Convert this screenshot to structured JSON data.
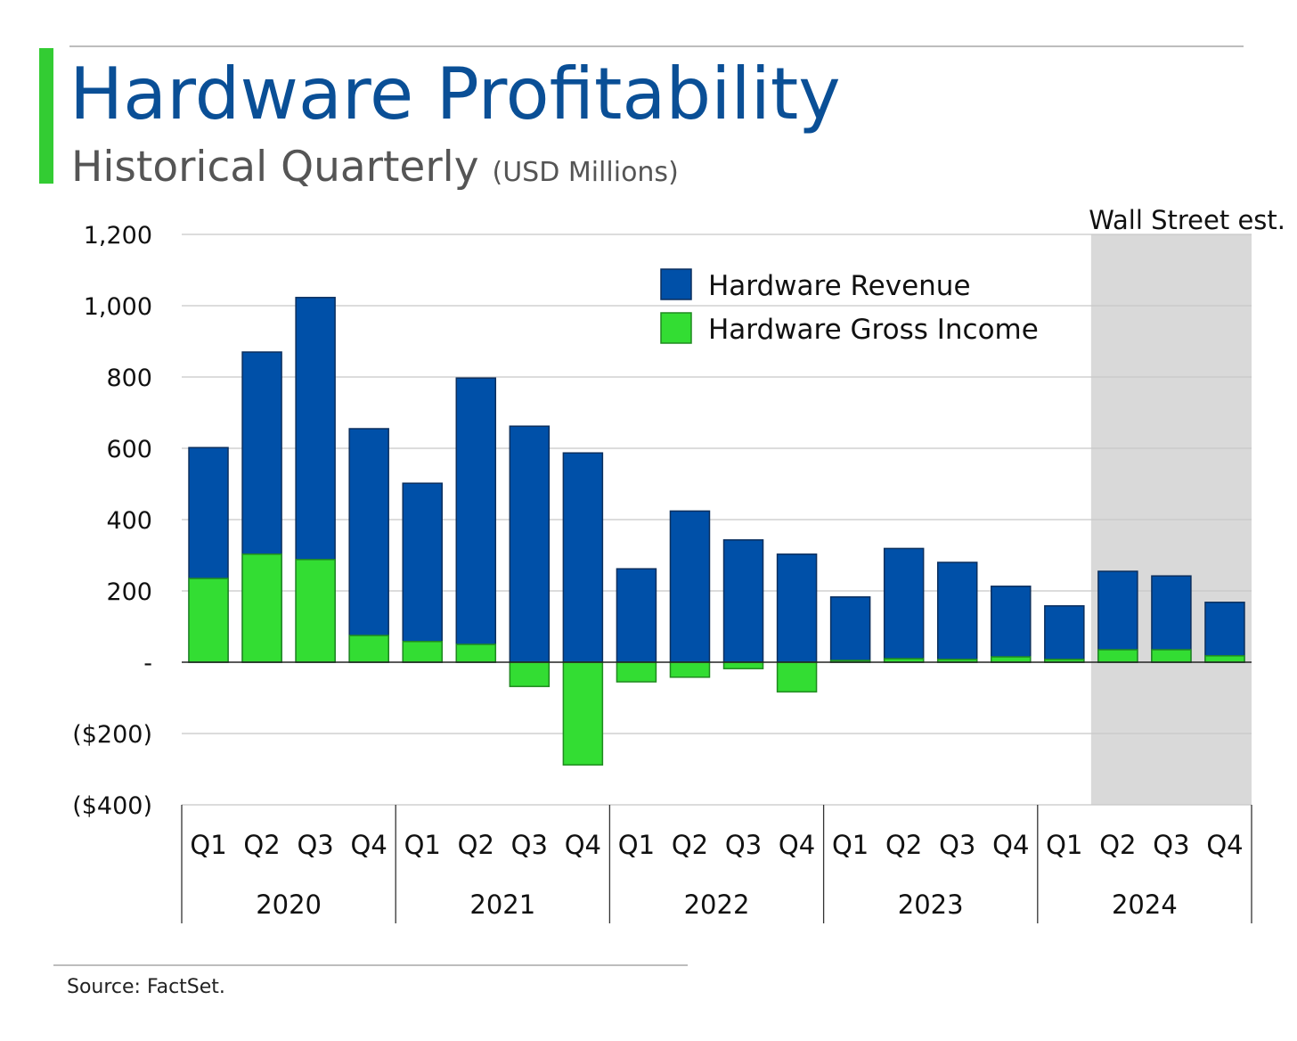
{
  "title": "Hardware Profitability",
  "subtitle": "Historical Quarterly",
  "units": "(USD Millions)",
  "source": "Source: FactSet.",
  "colors": {
    "title": "#0a4f96",
    "accent": "#33cc33",
    "revenue": "#0050a8",
    "gross_income": "#33dd33",
    "estimate_shade": "#d9d9d9"
  },
  "chart_data": {
    "type": "bar",
    "title": "Hardware Profitability",
    "subtitle": "Historical Quarterly (USD Millions)",
    "categories": [
      "Q1",
      "Q2",
      "Q3",
      "Q4",
      "Q1",
      "Q2",
      "Q3",
      "Q4",
      "Q1",
      "Q2",
      "Q3",
      "Q4",
      "Q1",
      "Q2",
      "Q3",
      "Q4",
      "Q1",
      "Q2",
      "Q3",
      "Q4"
    ],
    "groups": [
      {
        "label": "2020",
        "count": 4
      },
      {
        "label": "2021",
        "count": 4
      },
      {
        "label": "2022",
        "count": 4
      },
      {
        "label": "2023",
        "count": 4
      },
      {
        "label": "2024",
        "count": 4
      }
    ],
    "series": [
      {
        "name": "Hardware Revenue",
        "values": [
          602,
          870,
          1023,
          655,
          502,
          797,
          662,
          587,
          262,
          424,
          343,
          303,
          183,
          319,
          280,
          213,
          158,
          255,
          242,
          168
        ]
      },
      {
        "name": "Hardware Gross Income",
        "values": [
          235,
          303,
          288,
          75,
          58,
          50,
          -68,
          -288,
          -55,
          -42,
          -18,
          -83,
          5,
          10,
          8,
          15,
          8,
          35,
          35,
          18
        ]
      }
    ],
    "ylim": [
      -400,
      1200
    ],
    "yticks": [
      1200,
      1000,
      800,
      600,
      400,
      200,
      0,
      -200,
      -400
    ],
    "ytick_labels": [
      "1,200",
      "1,000",
      "800",
      "600",
      "400",
      "200",
      "-",
      "($200)",
      "($400)"
    ],
    "grid": true,
    "legend": "top-center",
    "annotation": "Wall Street est.",
    "estimate_categories": [
      17,
      18,
      19
    ]
  }
}
